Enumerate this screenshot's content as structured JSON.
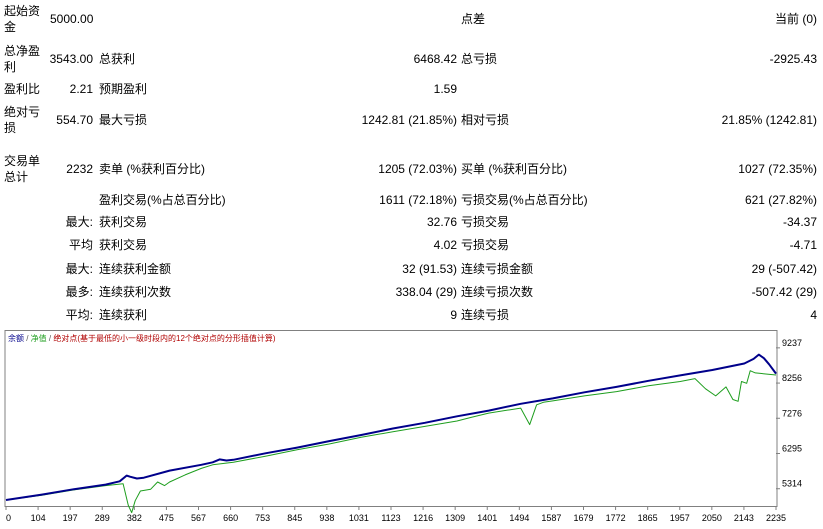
{
  "stats": {
    "initial_deposit_label": "起始资金",
    "initial_deposit_value": "5000.00",
    "spread_label": "点差",
    "spread_value": "当前 (0)",
    "total_net_profit_label": "总净盈利",
    "total_net_profit_value": "3543.00",
    "gross_profit_label": "总获利",
    "gross_profit_value": "6468.42",
    "gross_loss_label": "总亏损",
    "gross_loss_value": "-2925.43",
    "profit_factor_label": "盈利比",
    "profit_factor_value": "2.21",
    "expected_payoff_label": "预期盈利",
    "expected_payoff_value": "1.59",
    "absolute_drawdown_label": "绝对亏损",
    "absolute_drawdown_value": "554.70",
    "maximal_drawdown_label": "最大亏损",
    "maximal_drawdown_value": "1242.81 (21.85%)",
    "relative_drawdown_label": "相对亏损",
    "relative_drawdown_value": "21.85% (1242.81)",
    "total_trades_label": "交易单总计",
    "total_trades_value": "2232",
    "short_positions_label": "卖单 (%获利百分比)",
    "short_positions_value": "1205 (72.03%)",
    "long_positions_label": "买单 (%获利百分比)",
    "long_positions_value": "1027 (72.35%)",
    "profit_trades_label": "盈利交易(%占总百分比)",
    "profit_trades_value": "1611 (72.18%)",
    "loss_trades_label": "亏损交易(%占总百分比)",
    "loss_trades_value": "621 (27.82%)",
    "largest_prefix": "最大:",
    "largest_profit_label": "获利交易",
    "largest_profit_value": "32.76",
    "largest_loss_label": "亏损交易",
    "largest_loss_value": "-34.37",
    "average_prefix": "平均",
    "average_profit_label": "获利交易",
    "average_profit_value": "4.02",
    "average_loss_label": "亏损交易",
    "average_loss_value": "-4.71",
    "max_consec_prefix": "最大:",
    "max_consec_wins_label": "连续获利金额",
    "max_consec_wins_value": "32 (91.53)",
    "max_consec_losses_label": "连续亏损金额",
    "max_consec_losses_value": "29 (-507.42)",
    "maximal_prefix": "最多:",
    "maximal_consec_profit_label": "连续获利次数",
    "maximal_consec_profit_value": "338.04 (29)",
    "maximal_consec_loss_label": "连续亏损次数",
    "maximal_consec_loss_value": "-507.42 (29)",
    "avg_consec_prefix": "平均:",
    "avg_consec_wins_label": "连续获利",
    "avg_consec_wins_value": "9",
    "avg_consec_losses_label": "连续亏损",
    "avg_consec_losses_value": "4"
  },
  "chart": {
    "legend_balance": "余额",
    "legend_sep1": " / ",
    "legend_equity": "净值",
    "legend_sep2": " / ",
    "legend_drawdown": "绝对点(基于最低的小一级时段内的12个绝对点的分形插值计算)",
    "colors": {
      "balance": "#00008b",
      "equity": "#1e9e1e",
      "grid": "#c8c8c8",
      "frame": "#808080"
    }
  },
  "chart_data": {
    "type": "line",
    "x_ticks": [
      "0",
      "104",
      "197",
      "289",
      "382",
      "475",
      "567",
      "660",
      "753",
      "845",
      "938",
      "1031",
      "1123",
      "1216",
      "1309",
      "1401",
      "1494",
      "1587",
      "1679",
      "1772",
      "1865",
      "1957",
      "2050",
      "2143",
      "2235"
    ],
    "y_ticks": [
      5314,
      6295,
      7276,
      8256,
      9237
    ],
    "ylim": [
      5000,
      9400
    ],
    "xlim": [
      0,
      2235
    ],
    "series": [
      {
        "name": "余额",
        "x": [
          0,
          104,
          197,
          289,
          330,
          350,
          360,
          380,
          400,
          475,
          567,
          600,
          620,
          640,
          660,
          753,
          845,
          938,
          1031,
          1123,
          1216,
          1309,
          1401,
          1494,
          1587,
          1679,
          1772,
          1865,
          1957,
          2050,
          2143,
          2170,
          2185,
          2200,
          2215,
          2235
        ],
        "y": [
          5000,
          5150,
          5300,
          5430,
          5520,
          5680,
          5650,
          5600,
          5620,
          5820,
          5980,
          6050,
          6130,
          6100,
          6120,
          6300,
          6460,
          6640,
          6810,
          6990,
          7150,
          7330,
          7490,
          7680,
          7830,
          8000,
          8150,
          8320,
          8470,
          8620,
          8800,
          8930,
          9050,
          8950,
          8780,
          8520
        ]
      },
      {
        "name": "净值",
        "x": [
          0,
          104,
          197,
          289,
          340,
          355,
          365,
          375,
          390,
          420,
          440,
          460,
          475,
          520,
          567,
          600,
          660,
          753,
          845,
          938,
          1031,
          1123,
          1216,
          1309,
          1350,
          1401,
          1494,
          1520,
          1540,
          1560,
          1587,
          1679,
          1772,
          1865,
          1957,
          2000,
          2030,
          2060,
          2090,
          2110,
          2125,
          2135,
          2150,
          2160,
          2175,
          2235
        ],
        "y": [
          5000,
          5130,
          5280,
          5400,
          5450,
          4850,
          4650,
          4980,
          5250,
          5300,
          5500,
          5400,
          5500,
          5700,
          5880,
          5980,
          6050,
          6220,
          6400,
          6560,
          6750,
          6900,
          7050,
          7200,
          7300,
          7420,
          7560,
          7100,
          7650,
          7720,
          7760,
          7900,
          8020,
          8180,
          8300,
          8380,
          8100,
          7900,
          8150,
          7800,
          7750,
          8300,
          8250,
          8600,
          8540,
          8480
        ]
      }
    ]
  }
}
